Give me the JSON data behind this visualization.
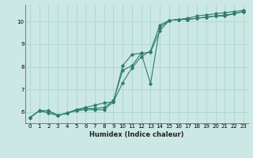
{
  "title": "",
  "xlabel": "Humidex (Indice chaleur)",
  "ylabel": "",
  "bg_color": "#cce8e4",
  "grid_color": "#b0d8d2",
  "line_color": "#2e7d6e",
  "xlim": [
    -0.5,
    23.5
  ],
  "ylim": [
    5.5,
    10.75
  ],
  "xticks": [
    0,
    1,
    2,
    3,
    4,
    5,
    6,
    7,
    8,
    9,
    10,
    11,
    12,
    13,
    14,
    15,
    16,
    17,
    18,
    19,
    20,
    21,
    22,
    23
  ],
  "yticks": [
    6,
    7,
    8,
    9,
    10
  ],
  "line1_x": [
    0,
    1,
    2,
    3,
    4,
    5,
    6,
    7,
    8,
    9,
    10,
    11,
    12,
    13,
    14,
    15,
    16,
    17,
    18,
    19,
    20,
    21,
    22,
    23
  ],
  "line1_y": [
    5.75,
    6.05,
    6.05,
    5.85,
    5.95,
    6.1,
    6.15,
    6.15,
    6.2,
    6.5,
    7.85,
    8.05,
    8.6,
    8.65,
    9.6,
    10.05,
    10.1,
    10.1,
    10.15,
    10.2,
    10.25,
    10.25,
    10.35,
    10.45
  ],
  "line2_x": [
    0,
    1,
    2,
    3,
    4,
    5,
    6,
    7,
    8,
    9,
    10,
    11,
    12,
    13,
    14,
    15,
    16,
    17,
    18,
    19,
    20,
    21,
    22,
    23
  ],
  "line2_y": [
    5.75,
    6.05,
    5.95,
    5.85,
    5.95,
    6.05,
    6.1,
    6.1,
    6.1,
    6.45,
    8.05,
    8.55,
    8.6,
    7.25,
    9.75,
    10.05,
    10.1,
    10.1,
    10.15,
    10.2,
    10.25,
    10.3,
    10.35,
    10.45
  ],
  "line3_x": [
    0,
    1,
    2,
    3,
    4,
    5,
    6,
    7,
    8,
    9,
    10,
    11,
    12,
    13,
    14,
    15,
    16,
    17,
    18,
    19,
    20,
    21,
    22,
    23
  ],
  "line3_y": [
    5.75,
    6.05,
    6.05,
    5.85,
    5.95,
    6.1,
    6.2,
    6.3,
    6.4,
    6.45,
    7.3,
    7.95,
    8.45,
    8.7,
    9.85,
    10.05,
    10.1,
    10.15,
    10.25,
    10.3,
    10.35,
    10.4,
    10.45,
    10.5
  ]
}
